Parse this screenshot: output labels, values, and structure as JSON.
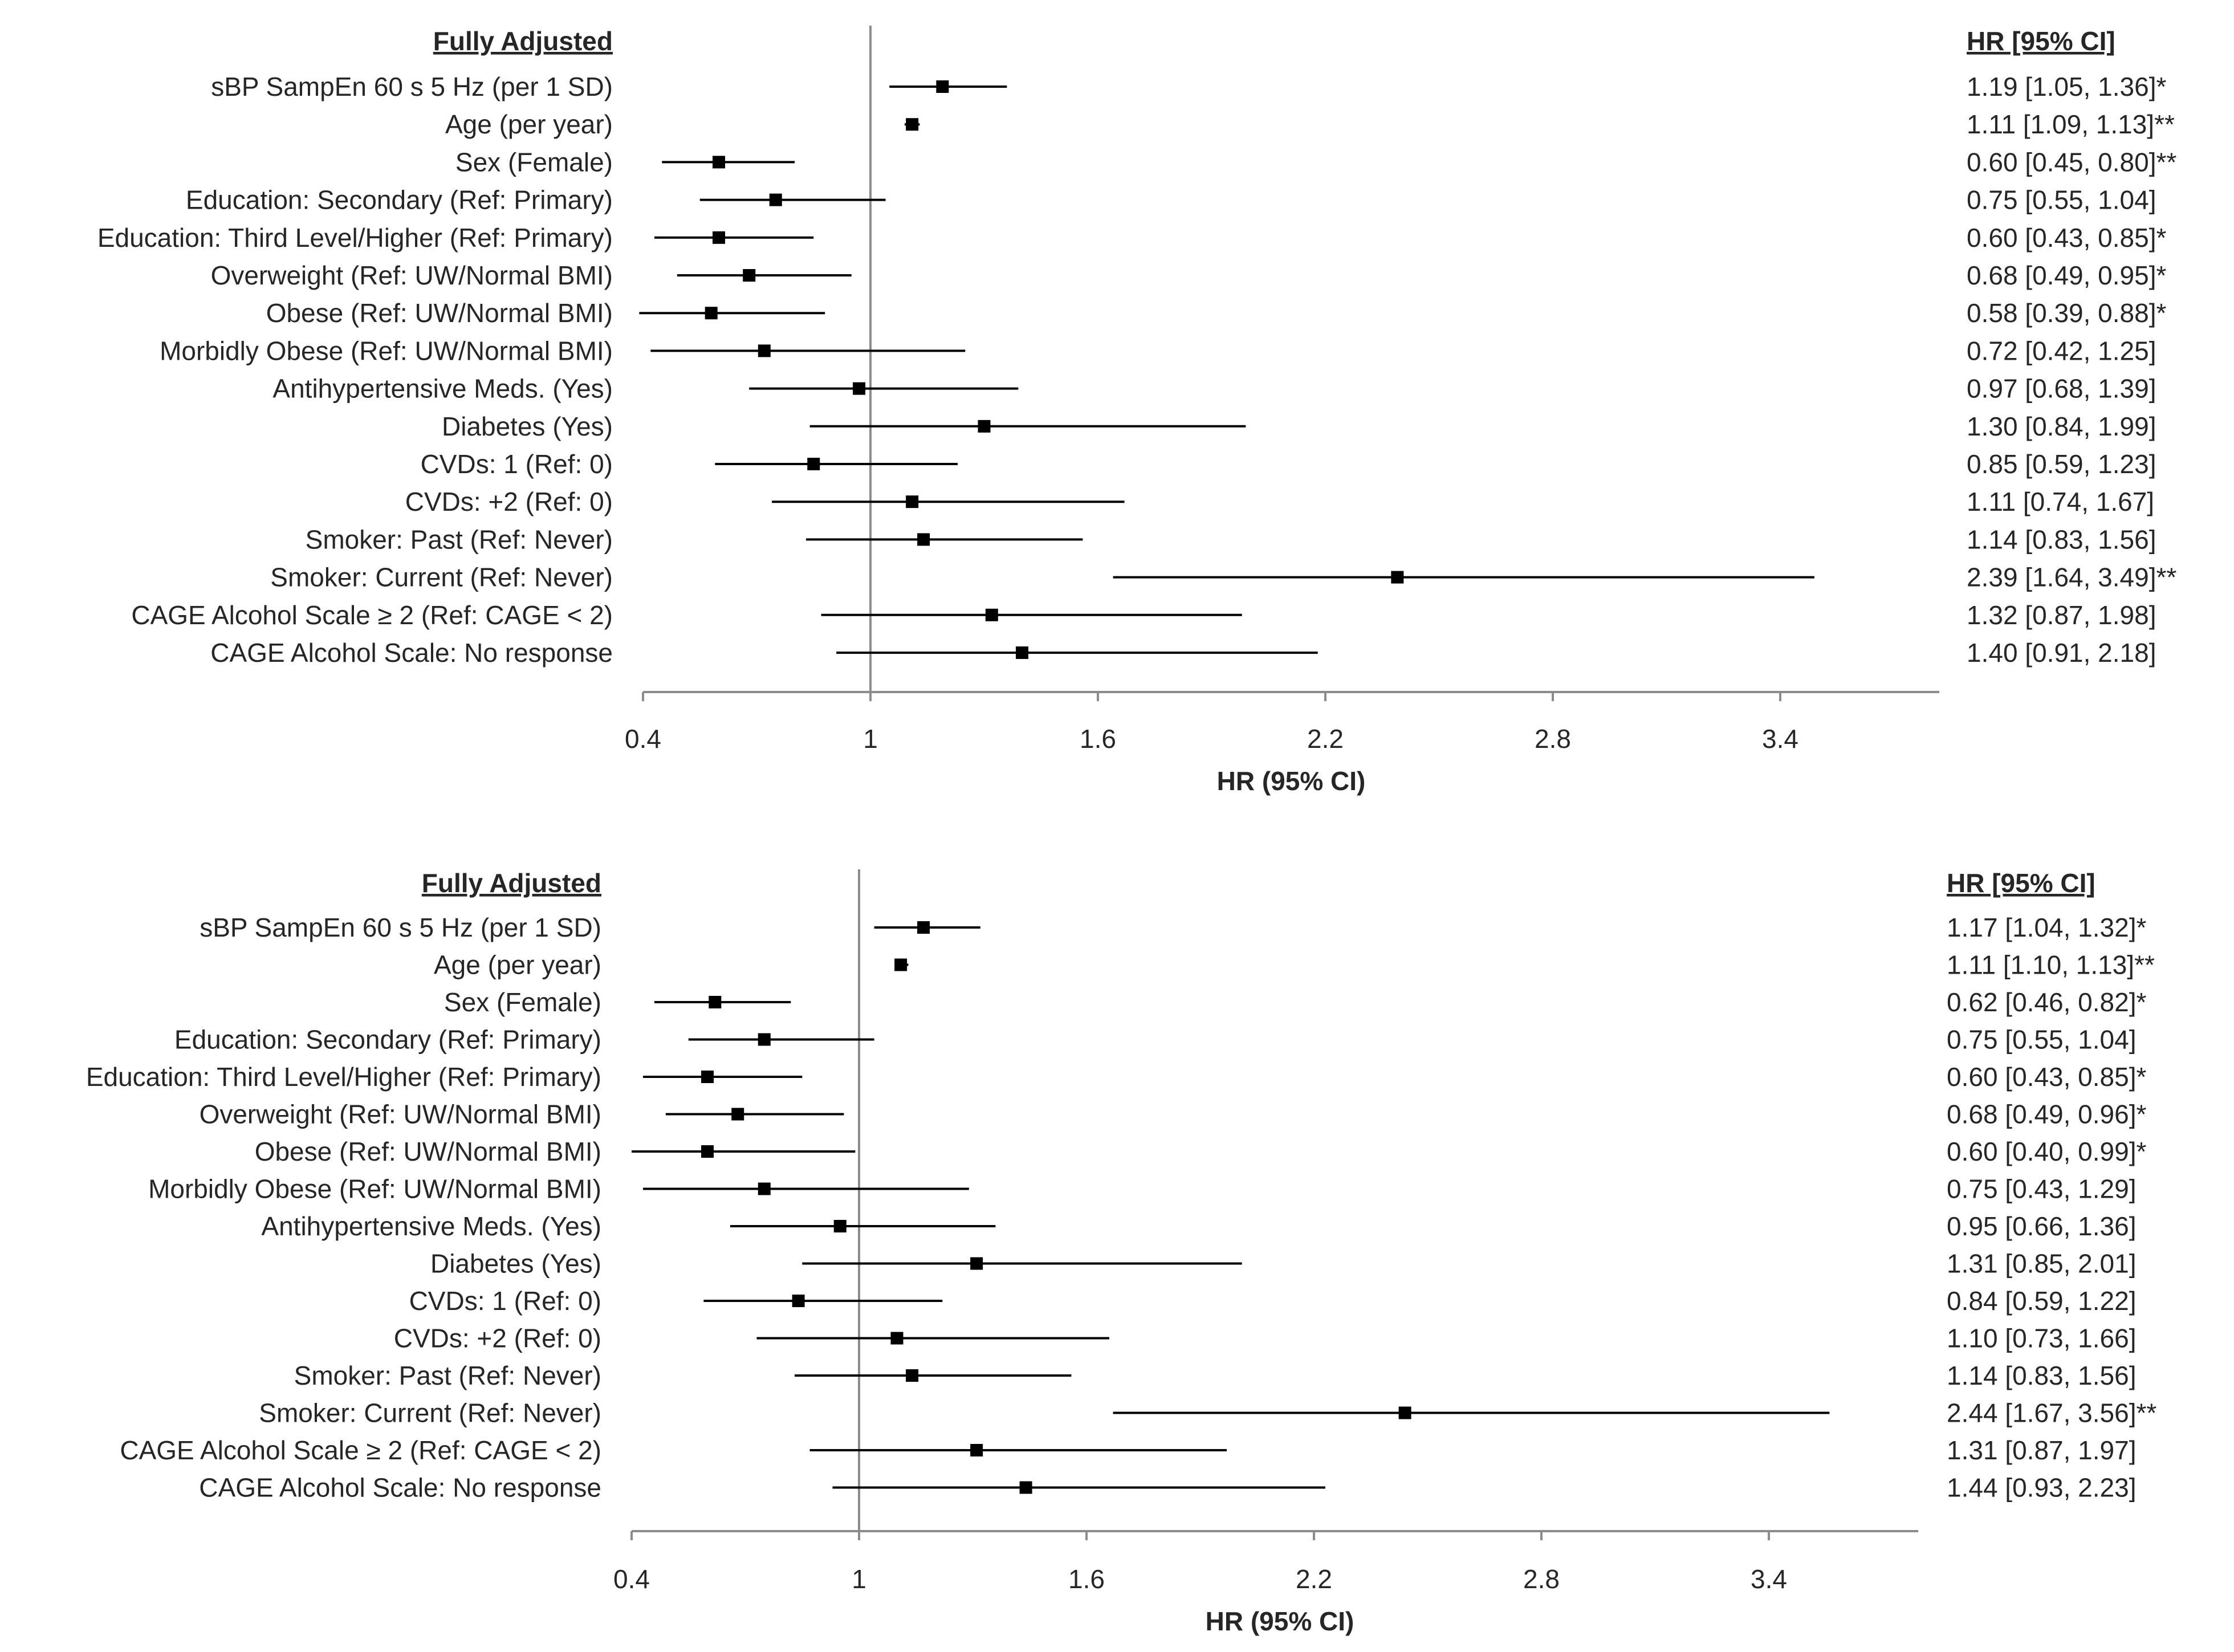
{
  "chart_data": [
    {
      "type": "forest",
      "row_header": "Fully Adjusted",
      "value_header": "HR    [95% CI]",
      "xlabel": "HR (95% CI)",
      "xlim": [
        0.4,
        3.7
      ],
      "xticks": [
        "0.4",
        "1",
        "1.6",
        "2.2",
        "2.8",
        "3.4"
      ],
      "xtick_values": [
        0.4,
        1,
        1.6,
        2.2,
        2.8,
        3.4
      ],
      "reference_line": 1,
      "rows": [
        {
          "label": "sBP SampEn 60 s 5 Hz (per 1 SD)",
          "hr": 1.19,
          "lo": 1.05,
          "hi": 1.36,
          "text": "1.19 [1.05, 1.36]*"
        },
        {
          "label": "Age (per year)",
          "hr": 1.11,
          "lo": 1.09,
          "hi": 1.13,
          "text": "1.11 [1.09, 1.13]**"
        },
        {
          "label": "Sex (Female)",
          "hr": 0.6,
          "lo": 0.45,
          "hi": 0.8,
          "text": "0.60 [0.45, 0.80]**"
        },
        {
          "label": "Education: Secondary (Ref: Primary)",
          "hr": 0.75,
          "lo": 0.55,
          "hi": 1.04,
          "text": "0.75 [0.55, 1.04]"
        },
        {
          "label": "Education: Third Level/Higher (Ref: Primary)",
          "hr": 0.6,
          "lo": 0.43,
          "hi": 0.85,
          "text": "0.60 [0.43, 0.85]*"
        },
        {
          "label": "Overweight (Ref: UW/Normal BMI)",
          "hr": 0.68,
          "lo": 0.49,
          "hi": 0.95,
          "text": "0.68 [0.49, 0.95]*"
        },
        {
          "label": "Obese (Ref: UW/Normal BMI)",
          "hr": 0.58,
          "lo": 0.39,
          "hi": 0.88,
          "text": "0.58 [0.39, 0.88]*"
        },
        {
          "label": "Morbidly Obese (Ref: UW/Normal BMI)",
          "hr": 0.72,
          "lo": 0.42,
          "hi": 1.25,
          "text": "0.72 [0.42, 1.25]"
        },
        {
          "label": "Antihypertensive Meds. (Yes)",
          "hr": 0.97,
          "lo": 0.68,
          "hi": 1.39,
          "text": "0.97 [0.68, 1.39]"
        },
        {
          "label": "Diabetes (Yes)",
          "hr": 1.3,
          "lo": 0.84,
          "hi": 1.99,
          "text": "1.30 [0.84, 1.99]"
        },
        {
          "label": "CVDs: 1 (Ref: 0)",
          "hr": 0.85,
          "lo": 0.59,
          "hi": 1.23,
          "text": "0.85 [0.59, 1.23]"
        },
        {
          "label": "CVDs: +2 (Ref: 0)",
          "hr": 1.11,
          "lo": 0.74,
          "hi": 1.67,
          "text": "1.11 [0.74, 1.67]"
        },
        {
          "label": "Smoker: Past (Ref: Never)",
          "hr": 1.14,
          "lo": 0.83,
          "hi": 1.56,
          "text": "1.14 [0.83, 1.56]"
        },
        {
          "label": "Smoker: Current (Ref: Never)",
          "hr": 2.39,
          "lo": 1.64,
          "hi": 3.49,
          "text": "2.39 [1.64, 3.49]**"
        },
        {
          "label": "CAGE Alcohol Scale ≥ 2 (Ref: CAGE < 2)",
          "hr": 1.32,
          "lo": 0.87,
          "hi": 1.98,
          "text": "1.32 [0.87, 1.98]"
        },
        {
          "label": "CAGE Alcohol Scale: No response",
          "hr": 1.4,
          "lo": 0.91,
          "hi": 2.18,
          "text": "1.40 [0.91, 2.18]"
        }
      ]
    },
    {
      "type": "forest",
      "row_header": "Fully Adjusted",
      "value_header": "HR    [95% CI]",
      "xlabel": "HR (95% CI)",
      "xlim": [
        0.4,
        3.7
      ],
      "xticks": [
        "0.4",
        "1",
        "1.6",
        "2.2",
        "2.8",
        "3.4"
      ],
      "xtick_values": [
        0.4,
        1,
        1.6,
        2.2,
        2.8,
        3.4
      ],
      "reference_line": 1,
      "rows": [
        {
          "label": "sBP SampEn 60 s 5 Hz (per 1 SD)",
          "hr": 1.17,
          "lo": 1.04,
          "hi": 1.32,
          "text": "1.17 [1.04, 1.32]*"
        },
        {
          "label": "Age (per year)",
          "hr": 1.11,
          "lo": 1.1,
          "hi": 1.13,
          "text": "1.11 [1.10, 1.13]**"
        },
        {
          "label": "Sex (Female)",
          "hr": 0.62,
          "lo": 0.46,
          "hi": 0.82,
          "text": "0.62 [0.46, 0.82]*"
        },
        {
          "label": "Education: Secondary (Ref: Primary)",
          "hr": 0.75,
          "lo": 0.55,
          "hi": 1.04,
          "text": "0.75 [0.55, 1.04]"
        },
        {
          "label": "Education: Third Level/Higher (Ref: Primary)",
          "hr": 0.6,
          "lo": 0.43,
          "hi": 0.85,
          "text": "0.60 [0.43, 0.85]*"
        },
        {
          "label": "Overweight (Ref: UW/Normal BMI)",
          "hr": 0.68,
          "lo": 0.49,
          "hi": 0.96,
          "text": "0.68 [0.49, 0.96]*"
        },
        {
          "label": "Obese (Ref: UW/Normal BMI)",
          "hr": 0.6,
          "lo": 0.4,
          "hi": 0.99,
          "text": "0.60 [0.40, 0.99]*"
        },
        {
          "label": "Morbidly Obese (Ref: UW/Normal BMI)",
          "hr": 0.75,
          "lo": 0.43,
          "hi": 1.29,
          "text": "0.75 [0.43, 1.29]"
        },
        {
          "label": "Antihypertensive Meds. (Yes)",
          "hr": 0.95,
          "lo": 0.66,
          "hi": 1.36,
          "text": "0.95 [0.66, 1.36]"
        },
        {
          "label": "Diabetes (Yes)",
          "hr": 1.31,
          "lo": 0.85,
          "hi": 2.01,
          "text": "1.31 [0.85, 2.01]"
        },
        {
          "label": "CVDs: 1 (Ref: 0)",
          "hr": 0.84,
          "lo": 0.59,
          "hi": 1.22,
          "text": "0.84 [0.59, 1.22]"
        },
        {
          "label": "CVDs: +2 (Ref: 0)",
          "hr": 1.1,
          "lo": 0.73,
          "hi": 1.66,
          "text": "1.10 [0.73, 1.66]"
        },
        {
          "label": "Smoker: Past (Ref: Never)",
          "hr": 1.14,
          "lo": 0.83,
          "hi": 1.56,
          "text": "1.14 [0.83, 1.56]"
        },
        {
          "label": "Smoker: Current (Ref: Never)",
          "hr": 2.44,
          "lo": 1.67,
          "hi": 3.56,
          "text": "2.44 [1.67, 3.56]**"
        },
        {
          "label": "CAGE Alcohol Scale ≥ 2 (Ref: CAGE < 2)",
          "hr": 1.31,
          "lo": 0.87,
          "hi": 1.97,
          "text": "1.31 [0.87, 1.97]"
        },
        {
          "label": "CAGE Alcohol Scale: No response",
          "hr": 1.44,
          "lo": 0.93,
          "hi": 2.23,
          "text": "1.44 [0.93, 2.23]"
        }
      ]
    }
  ]
}
